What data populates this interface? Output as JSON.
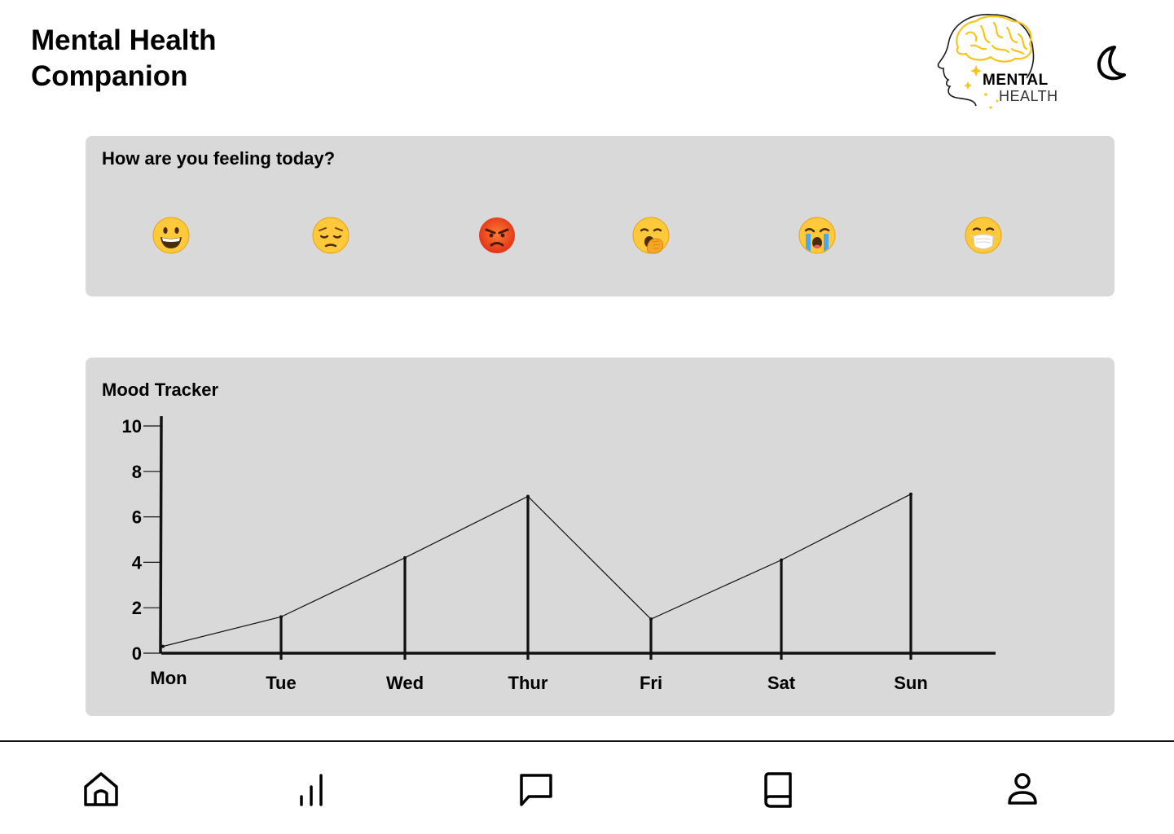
{
  "header": {
    "title": "Mental Health Companion",
    "logo_line1": "MENTAL",
    "logo_line2": "HEALTH",
    "theme_toggle_icon": "moon-icon"
  },
  "mood_card": {
    "question": "How are you feeling today?",
    "options": [
      {
        "name": "happy",
        "icon": "grinning-face-icon"
      },
      {
        "name": "pensive",
        "icon": "pensive-face-icon"
      },
      {
        "name": "angry",
        "icon": "angry-face-icon"
      },
      {
        "name": "yawning",
        "icon": "yawning-face-icon"
      },
      {
        "name": "crying",
        "icon": "crying-face-icon"
      },
      {
        "name": "sick",
        "icon": "face-with-mask-icon"
      }
    ]
  },
  "tracker": {
    "title": "Mood Tracker"
  },
  "chart_data": {
    "type": "line",
    "categories": [
      "Mon",
      "Tue",
      "Wed",
      "Thur",
      "Fri",
      "Sat",
      "Sun"
    ],
    "values": [
      0.3,
      1.6,
      4.2,
      6.9,
      1.5,
      4.1,
      7.0
    ],
    "y_ticks": [
      0,
      2,
      4,
      6,
      8,
      10
    ],
    "ylim": [
      0,
      10
    ],
    "title": "Mood Tracker",
    "grid": false,
    "drop_lines": true
  },
  "bottom_nav": {
    "items": [
      {
        "name": "home",
        "icon": "home-icon"
      },
      {
        "name": "stats",
        "icon": "bar-chart-icon"
      },
      {
        "name": "chat",
        "icon": "chat-icon"
      },
      {
        "name": "journal",
        "icon": "book-icon"
      },
      {
        "name": "profile",
        "icon": "user-icon"
      }
    ]
  },
  "colors": {
    "card_bg": "#d9d9d9",
    "emoji_yellow": "#ffc93a",
    "angry_red": "#f24a1c",
    "logo_gold": "#f5c518"
  }
}
